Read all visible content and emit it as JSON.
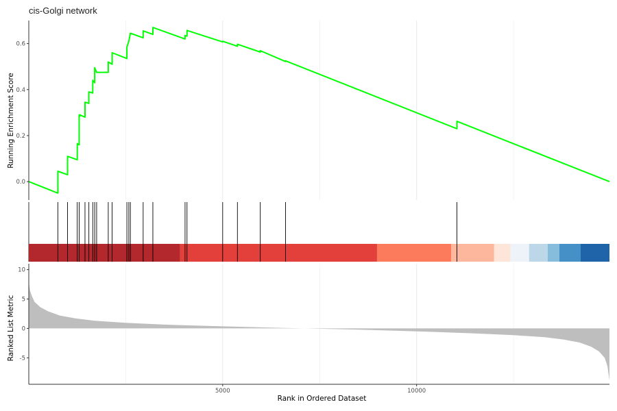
{
  "chart_data": {
    "type": "line",
    "title": "cis-Golgi network",
    "xlabel": "Rank in Ordered Dataset",
    "x_ticks": [
      5000,
      10000
    ],
    "xlim": [
      1,
      14973
    ],
    "grid": "vertical only, light grey",
    "panels": [
      {
        "name": "running-enrichment-score",
        "ylabel": "Running Enrichment Score",
        "ylim": [
          -0.08,
          0.7
        ],
        "y_ticks": [
          0.0,
          0.2,
          0.4,
          0.6
        ],
        "line_color": "#00ff00",
        "series": [
          {
            "x": [
              1,
              750,
              750,
              1000,
              1000,
              1250,
              1250,
              1300,
              1300,
              1320,
              1320,
              1450,
              1450,
              1550,
              1550,
              1650,
              1650,
              1700,
              1700,
              1750,
              1750,
              2050,
              2050,
              2150,
              2150,
              2530,
              2530,
              2580,
              2580,
              2620,
              2620,
              2950,
              2950,
              3200,
              3200,
              4030,
              4030,
              4080,
              4080,
              5000,
              5000,
              5380,
              5380,
              5970,
              5970,
              6620,
              6620,
              11040,
              11040,
              14973
            ],
            "y": [
              0.0,
              -0.05,
              0.045,
              0.03,
              0.11,
              0.095,
              0.165,
              0.16,
              0.29,
              0.285,
              0.29,
              0.28,
              0.345,
              0.34,
              0.39,
              0.385,
              0.44,
              0.43,
              0.495,
              0.475,
              0.475,
              0.475,
              0.52,
              0.51,
              0.56,
              0.535,
              0.585,
              0.61,
              0.61,
              0.645,
              0.645,
              0.625,
              0.655,
              0.64,
              0.67,
              0.62,
              0.635,
              0.632,
              0.657,
              0.607,
              0.61,
              0.588,
              0.597,
              0.563,
              0.569,
              0.522,
              0.525,
              0.23,
              0.262,
              0.0
            ]
          }
        ]
      },
      {
        "name": "gene-hits",
        "hits": [
          750,
          1000,
          1250,
          1300,
          1450,
          1550,
          1650,
          1700,
          1750,
          2050,
          2150,
          2530,
          2580,
          2620,
          2950,
          3200,
          4030,
          4080,
          5000,
          5380,
          5970,
          6620,
          11040
        ],
        "heat_bands": [
          {
            "from": 1,
            "to": 3900,
            "color": "#b2282c"
          },
          {
            "from": 3900,
            "to": 8980,
            "color": "#e3403c"
          },
          {
            "from": 8980,
            "to": 10890,
            "color": "#fc7b5d"
          },
          {
            "from": 10890,
            "to": 12000,
            "color": "#fcb79d"
          },
          {
            "from": 12000,
            "to": 12420,
            "color": "#fde5d9"
          },
          {
            "from": 12420,
            "to": 12900,
            "color": "#eef3fa"
          },
          {
            "from": 12900,
            "to": 13380,
            "color": "#bcd8e8"
          },
          {
            "from": 13380,
            "to": 13680,
            "color": "#86bcdc"
          },
          {
            "from": 13680,
            "to": 14230,
            "color": "#4490c7"
          },
          {
            "from": 14230,
            "to": 14973,
            "color": "#1f64a8"
          }
        ]
      },
      {
        "name": "ranked-list-metric",
        "ylabel": "Ranked List Metric",
        "ylim": [
          -9.5,
          11
        ],
        "y_ticks": [
          10,
          5,
          0,
          -5
        ],
        "fill_color": "#bebebe",
        "series": [
          {
            "x": [
              1,
              30,
              80,
              150,
              300,
              500,
              800,
              1200,
              1700,
              2500,
              3500,
              5000,
              6500,
              7500,
              8500,
              9500,
              10500,
              11500,
              12500,
              13300,
              13800,
              14200,
              14500,
              14700,
              14850,
              14920,
              14973
            ],
            "y": [
              8.0,
              6.5,
              5.5,
              4.5,
              3.6,
              2.9,
              2.2,
              1.7,
              1.3,
              0.95,
              0.65,
              0.35,
              0.1,
              -0.05,
              -0.2,
              -0.4,
              -0.6,
              -0.85,
              -1.15,
              -1.5,
              -1.9,
              -2.4,
              -3.1,
              -3.9,
              -5.0,
              -6.4,
              -8.8
            ]
          }
        ]
      }
    ]
  }
}
